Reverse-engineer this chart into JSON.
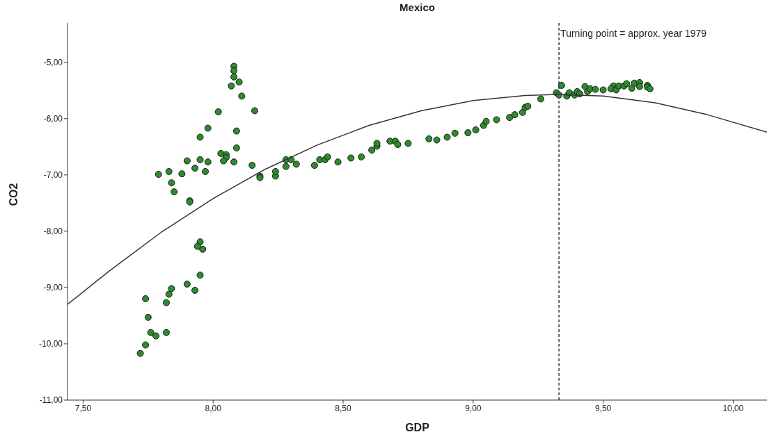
{
  "chart_data": {
    "type": "scatter",
    "title": "Mexico",
    "xlabel": "GDP",
    "ylabel": "CO2",
    "xlim": [
      7.44,
      10.13
    ],
    "ylim": [
      -11,
      -4.3
    ],
    "xticks": [
      {
        "value": 7.5,
        "label": "7,50"
      },
      {
        "value": 8,
        "label": "8,00"
      },
      {
        "value": 8.5,
        "label": "8,50"
      },
      {
        "value": 9,
        "label": "9,00"
      },
      {
        "value": 9.5,
        "label": "9,50"
      },
      {
        "value": 10,
        "label": "10,00"
      }
    ],
    "yticks": [
      {
        "value": -11,
        "label": "-11,00"
      },
      {
        "value": -10,
        "label": "-10,00"
      },
      {
        "value": -9,
        "label": "-9,00"
      },
      {
        "value": -8,
        "label": "-8,00"
      },
      {
        "value": -7,
        "label": "-7,00"
      },
      {
        "value": -6,
        "label": "-6,00"
      },
      {
        "value": -5,
        "label": "-5,00"
      }
    ],
    "marker": "circle",
    "ref_lines": [
      {
        "axis": "x",
        "value": 9.33,
        "label": "Turning point = approx. year 1979",
        "color": "#333333",
        "line_style": "dashed"
      }
    ],
    "series": [
      {
        "color": "#2e8b2e",
        "x": [
          7.95,
          7.94,
          7.96,
          7.95,
          7.9,
          7.93,
          7.84,
          7.83,
          7.82,
          7.74,
          7.75,
          7.76,
          7.78,
          7.82,
          7.74,
          7.72,
          8.08,
          8.08,
          8.08,
          8.1,
          8.07,
          8.11,
          8.02,
          8.16,
          7.98,
          8.09,
          7.95,
          8.09,
          8.03,
          8.05,
          8.05,
          8.04,
          8.08,
          7.9,
          7.95,
          7.98,
          8.15,
          7.93,
          7.97,
          7.79,
          7.83,
          7.88,
          7.84,
          7.85,
          7.91,
          7.91,
          8.18,
          8.18,
          8.24,
          8.24,
          8.28,
          8.28,
          8.3,
          8.32,
          8.39,
          8.41,
          8.43,
          8.44,
          8.48,
          8.53,
          8.57,
          8.61,
          8.63,
          8.63,
          8.68,
          8.7,
          8.71,
          8.75,
          8.83,
          8.86,
          8.9,
          8.93,
          8.98,
          9.01,
          9.04,
          9.05,
          9.09,
          9.14,
          9.16,
          9.19,
          9.2,
          9.21,
          9.26,
          9.32,
          9.33,
          9.34,
          9.36,
          9.37,
          9.39,
          9.4,
          9.41,
          9.43,
          9.44,
          9.45,
          9.47,
          9.5,
          9.54,
          9.53,
          9.55,
          9.56,
          9.58,
          9.59,
          9.61,
          9.62,
          9.64,
          9.64,
          9.67,
          9.67,
          9.68
        ],
        "values": [
          -8.19,
          -8.27,
          -8.32,
          -8.78,
          -8.94,
          -9.05,
          -9.02,
          -9.12,
          -9.27,
          -9.2,
          -9.53,
          -9.8,
          -9.86,
          -9.8,
          -10.02,
          -10.17,
          -5.07,
          -5.15,
          -5.26,
          -5.35,
          -5.42,
          -5.6,
          -5.88,
          -5.86,
          -6.17,
          -6.22,
          -6.33,
          -6.52,
          -6.62,
          -6.64,
          -6.69,
          -6.75,
          -6.77,
          -6.75,
          -6.73,
          -6.77,
          -6.83,
          -6.88,
          -6.94,
          -6.99,
          -6.94,
          -6.98,
          -7.14,
          -7.3,
          -7.46,
          -7.48,
          -7.02,
          -7.05,
          -7.02,
          -6.94,
          -6.85,
          -6.73,
          -6.73,
          -6.81,
          -6.83,
          -6.73,
          -6.73,
          -6.68,
          -6.77,
          -6.7,
          -6.68,
          -6.56,
          -6.49,
          -6.44,
          -6.4,
          -6.4,
          -6.46,
          -6.44,
          -6.36,
          -6.38,
          -6.33,
          -6.26,
          -6.25,
          -6.2,
          -6.12,
          -6.05,
          -6.02,
          -5.98,
          -5.93,
          -5.89,
          -5.8,
          -5.78,
          -5.65,
          -5.54,
          -5.58,
          -5.41,
          -5.6,
          -5.54,
          -5.58,
          -5.52,
          -5.56,
          -5.43,
          -5.52,
          -5.47,
          -5.48,
          -5.49,
          -5.42,
          -5.47,
          -5.49,
          -5.42,
          -5.42,
          -5.38,
          -5.46,
          -5.37,
          -5.36,
          -5.43,
          -5.41,
          -5.44,
          -5.47
        ]
      },
      {
        "type": "line",
        "color": "#333333",
        "marker": "none",
        "x": [
          7.44,
          7.6,
          7.8,
          8.0,
          8.2,
          8.4,
          8.6,
          8.8,
          9.0,
          9.2,
          9.32,
          9.5,
          9.7,
          9.9,
          10.13
        ],
        "values": [
          -9.3,
          -8.71,
          -8.02,
          -7.42,
          -6.9,
          -6.47,
          -6.12,
          -5.86,
          -5.68,
          -5.59,
          -5.57,
          -5.6,
          -5.72,
          -5.93,
          -6.24
        ]
      }
    ]
  }
}
